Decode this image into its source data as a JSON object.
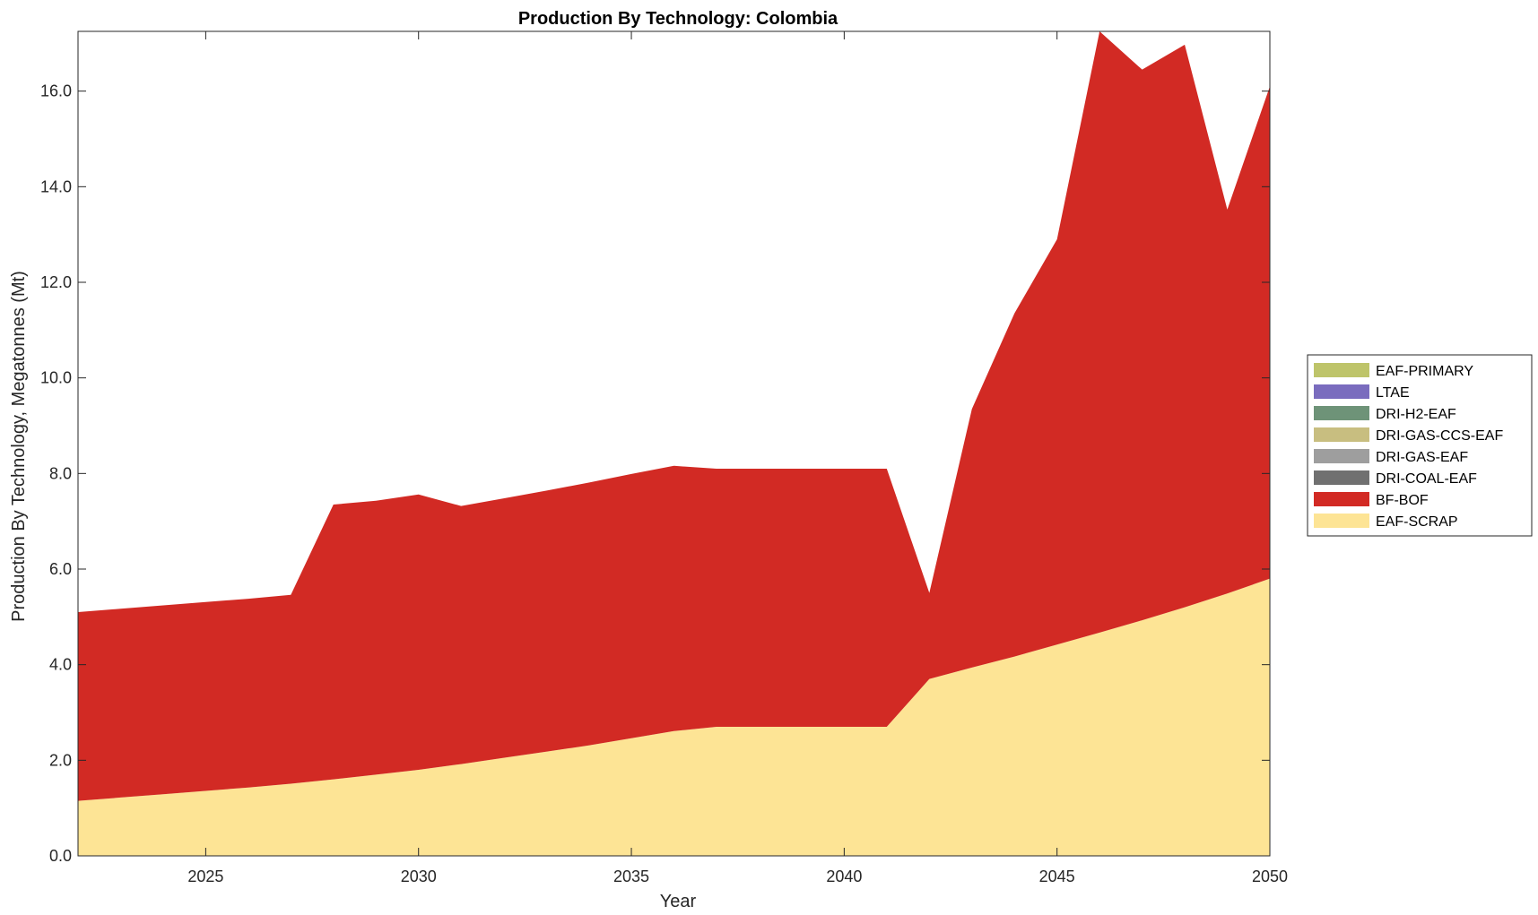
{
  "chart_data": {
    "type": "area",
    "stacked": true,
    "title": "Production By Technology: Colombia",
    "xlabel": "Year",
    "ylabel": "Production By Technology, Megatonnes (Mt)",
    "xlim": [
      2022,
      2050
    ],
    "ylim": [
      0,
      17.25
    ],
    "x_ticks": [
      2025,
      2030,
      2035,
      2040,
      2045,
      2050
    ],
    "y_ticks": [
      0,
      2,
      4,
      6,
      8,
      10,
      12,
      14,
      16
    ],
    "y_tick_labels": [
      "0.0",
      "2.0",
      "4.0",
      "6.0",
      "8.0",
      "10.0",
      "12.0",
      "14.0",
      "16.0"
    ],
    "grid": false,
    "legend_position": "right",
    "x": [
      2022,
      2023,
      2024,
      2025,
      2026,
      2027,
      2028,
      2029,
      2030,
      2031,
      2032,
      2033,
      2034,
      2035,
      2036,
      2037,
      2038,
      2039,
      2040,
      2041,
      2042,
      2043,
      2044,
      2045,
      2046,
      2047,
      2048,
      2049,
      2050
    ],
    "series": [
      {
        "name": "EAF-SCRAP",
        "color": "#FDE495",
        "values": [
          1.15,
          1.22,
          1.29,
          1.36,
          1.43,
          1.51,
          1.6,
          1.7,
          1.8,
          1.92,
          2.05,
          2.18,
          2.31,
          2.46,
          2.61,
          2.7,
          2.7,
          2.7,
          2.7,
          2.7,
          3.7,
          3.94,
          4.17,
          4.42,
          4.67,
          4.93,
          5.2,
          5.49,
          5.8
        ]
      },
      {
        "name": "BF-BOF",
        "color": "#D22A24",
        "values": [
          3.95,
          3.95,
          3.95,
          3.95,
          3.95,
          3.95,
          5.75,
          5.73,
          5.76,
          5.4,
          5.43,
          5.46,
          5.5,
          5.53,
          5.55,
          5.4,
          5.4,
          5.4,
          5.4,
          5.4,
          1.8,
          5.41,
          7.18,
          8.48,
          12.58,
          11.52,
          11.77,
          8.03,
          10.3
        ]
      },
      {
        "name": "DRI-COAL-EAF",
        "color": "#707070",
        "values": [
          0,
          0,
          0,
          0,
          0,
          0,
          0,
          0,
          0,
          0,
          0,
          0,
          0,
          0,
          0,
          0,
          0,
          0,
          0,
          0,
          0,
          0,
          0,
          0,
          0,
          0,
          0,
          0,
          0
        ]
      },
      {
        "name": "DRI-GAS-EAF",
        "color": "#9E9E9E",
        "values": [
          0,
          0,
          0,
          0,
          0,
          0,
          0,
          0,
          0,
          0,
          0,
          0,
          0,
          0,
          0,
          0,
          0,
          0,
          0,
          0,
          0,
          0,
          0,
          0,
          0,
          0,
          0,
          0,
          0
        ]
      },
      {
        "name": "DRI-GAS-CCS-EAF",
        "color": "#C8BE80",
        "values": [
          0,
          0,
          0,
          0,
          0,
          0,
          0,
          0,
          0,
          0,
          0,
          0,
          0,
          0,
          0,
          0,
          0,
          0,
          0,
          0,
          0,
          0,
          0,
          0,
          0,
          0,
          0,
          0,
          0
        ]
      },
      {
        "name": "DRI-H2-EAF",
        "color": "#6E9378",
        "values": [
          0,
          0,
          0,
          0,
          0,
          0,
          0,
          0,
          0,
          0,
          0,
          0,
          0,
          0,
          0,
          0,
          0,
          0,
          0,
          0,
          0,
          0,
          0,
          0,
          0,
          0,
          0,
          0,
          0
        ]
      },
      {
        "name": "LTAE",
        "color": "#7A6CBE",
        "values": [
          0,
          0,
          0,
          0,
          0,
          0,
          0,
          0,
          0,
          0,
          0,
          0,
          0,
          0,
          0,
          0,
          0,
          0,
          0,
          0,
          0,
          0,
          0,
          0,
          0,
          0,
          0,
          0,
          0
        ]
      },
      {
        "name": "EAF-PRIMARY",
        "color": "#BEC46A",
        "values": [
          0,
          0,
          0,
          0,
          0,
          0,
          0,
          0,
          0,
          0,
          0,
          0,
          0,
          0,
          0,
          0,
          0,
          0,
          0,
          0,
          0,
          0,
          0,
          0,
          0,
          0,
          0,
          0,
          0
        ]
      }
    ],
    "legend_order": [
      "EAF-PRIMARY",
      "LTAE",
      "DRI-H2-EAF",
      "DRI-GAS-CCS-EAF",
      "DRI-GAS-EAF",
      "DRI-COAL-EAF",
      "BF-BOF",
      "EAF-SCRAP"
    ]
  }
}
